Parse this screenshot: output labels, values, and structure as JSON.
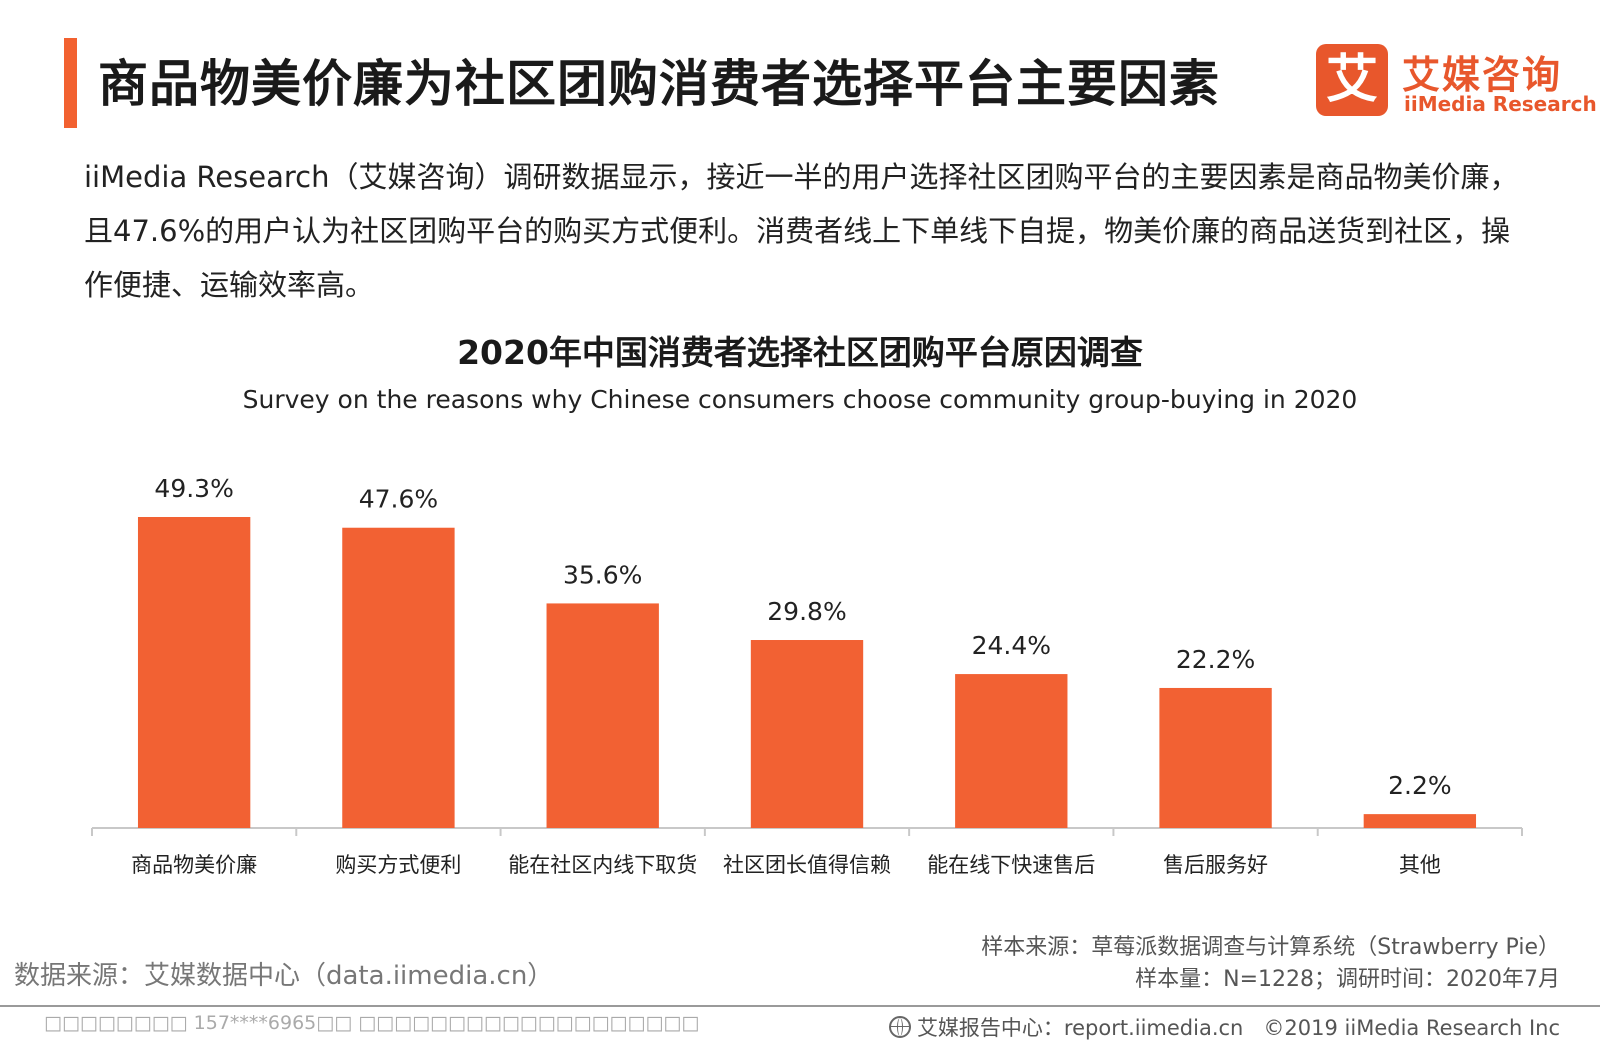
{
  "header": {
    "title": "商品物美价廉为社区团购消费者选择平台主要因素",
    "logo_mark": "艾",
    "logo_cn": "艾媒咨询",
    "logo_en": "iiMedia Research"
  },
  "intro": "iiMedia Research（艾媒咨询）调研数据显示，接近一半的用户选择社区团购平台的主要因素是商品物美价廉，且47.6%的用户认为社区团购平台的购买方式便利。消费者线上下单线下自提，物美价廉的商品送货到社区，操作便捷、运输效率高。",
  "chart_data": {
    "type": "bar",
    "title": "2020年中国消费者选择社区团购平台原因调查",
    "subtitle": "Survey on the reasons why Chinese consumers choose community group-buying in 2020",
    "categories": [
      "商品物美价廉",
      "购买方式便利",
      "能在社区内线下取货",
      "社区团长值得信赖",
      "能在线下快速售后",
      "售后服务好",
      "其他"
    ],
    "values": [
      49.3,
      47.6,
      35.6,
      29.8,
      24.4,
      22.2,
      2.2
    ],
    "value_labels": [
      "49.3%",
      "47.6%",
      "35.6%",
      "29.8%",
      "24.4%",
      "22.2%",
      "2.2%"
    ],
    "unit": "%",
    "ylim": [
      0,
      49.3
    ],
    "grid": false,
    "legend": "none",
    "bar_color": "#f26133"
  },
  "sources": {
    "left": "数据来源：艾媒数据中心（data.iimedia.cn）",
    "right_line1": "样本来源：草莓派数据调查与计算系统（Strawberry Pie）",
    "right_line2": "样本量：N=1228；调研时间：2020年7月"
  },
  "footer": {
    "left": "□□□□□□□□ 157****6965□□ □□□□□□□□□□□□□□□□□□□",
    "right_site": "艾媒报告中心：report.iimedia.cn",
    "copyright": "©2019  iiMedia Research  Inc"
  }
}
